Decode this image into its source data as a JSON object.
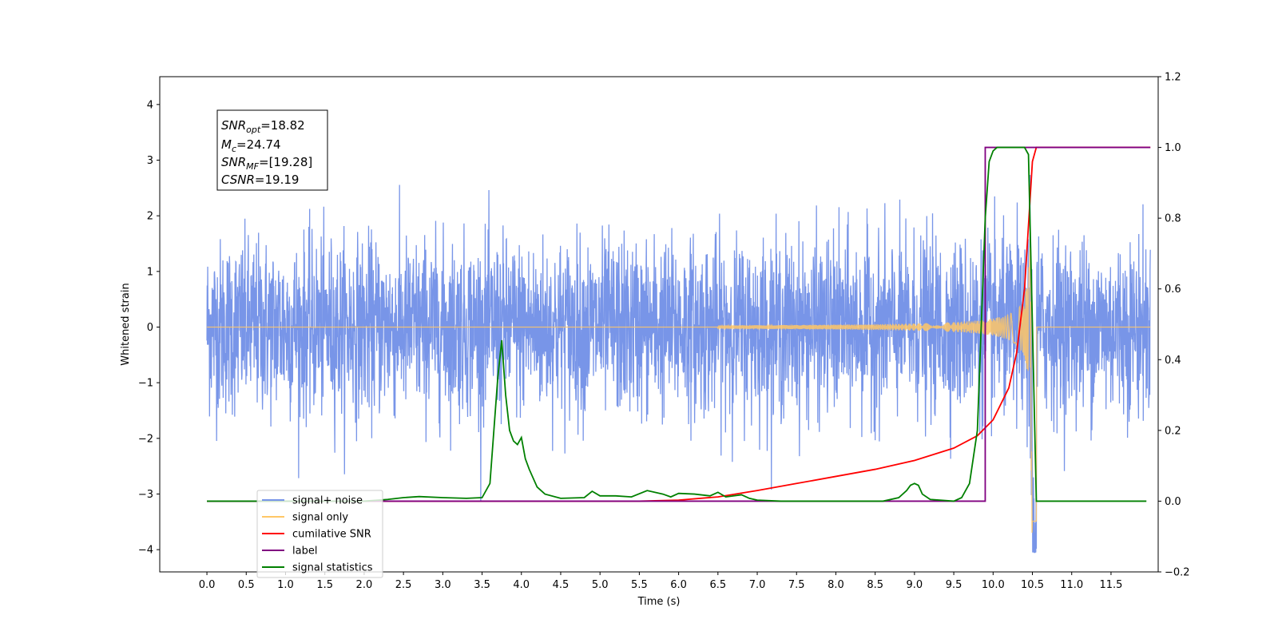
{
  "chart_data": {
    "type": "line",
    "xlabel": "Time (s)",
    "ylabel_left": "Whitened strain",
    "xlim": [
      -0.6,
      12.1
    ],
    "ylim_left": [
      -4.4,
      4.5
    ],
    "ylim_right": [
      -0.2,
      1.2
    ],
    "xticks": [
      0.0,
      0.5,
      1.0,
      1.5,
      2.0,
      2.5,
      3.0,
      3.5,
      4.0,
      4.5,
      5.0,
      5.5,
      6.0,
      6.5,
      7.0,
      7.5,
      8.0,
      8.5,
      9.0,
      9.5,
      10.0,
      10.5,
      11.0,
      11.5
    ],
    "xtick_labels": [
      "0.0",
      "0.5",
      "1.0",
      "1.5",
      "2.0",
      "2.5",
      "3.0",
      "3.5",
      "4.0",
      "4.5",
      "5.0",
      "5.5",
      "6.0",
      "6.5",
      "7.0",
      "7.5",
      "8.0",
      "8.5",
      "9.0",
      "9.5",
      "10.0",
      "10.5",
      "11.0",
      "11.5"
    ],
    "yticks_left": [
      -4,
      -3,
      -2,
      -1,
      0,
      1,
      2,
      3,
      4
    ],
    "ytick_labels_left": [
      "−4",
      "−3",
      "−2",
      "−1",
      "0",
      "1",
      "2",
      "3",
      "4"
    ],
    "yticks_right": [
      -0.2,
      0.0,
      0.2,
      0.4,
      0.6,
      0.8,
      1.0,
      1.2
    ],
    "ytick_labels_right": [
      "−0.2",
      "0.0",
      "0.2",
      "0.4",
      "0.6",
      "0.8",
      "1.0",
      "1.2"
    ],
    "stats_box": {
      "snr_opt": {
        "base": "SNR",
        "sub": "opt",
        "value": "=18.82"
      },
      "mc": {
        "base": "M",
        "sub": "c",
        "value": "=24.74"
      },
      "snr_mf": {
        "base": "SNR",
        "sub": "MF",
        "value": "=[19.28]"
      },
      "csnr": {
        "base": "CSNR",
        "sub": "",
        "value": "=19.19"
      }
    },
    "legend": {
      "location": "lower-left",
      "entries": [
        {
          "label": "signal+ noise",
          "color": "#7895e8"
        },
        {
          "label": "signal only",
          "color": "#ffc766"
        },
        {
          "label": "cumilative SNR",
          "color": "#ff0000"
        },
        {
          "label": "label",
          "color": "#800080"
        },
        {
          "label": "signal statistics",
          "color": "#008000"
        }
      ]
    },
    "series": [
      {
        "name": "signal+ noise",
        "axis": "left",
        "color": "#7895e8",
        "description_range": [
          0.0,
          12.0
        ],
        "approx_amplitude": 2.1
      },
      {
        "name": "signal only",
        "axis": "left",
        "color": "#ffc766",
        "chirp": {
          "t_start": 6.5,
          "t_merge": 10.5,
          "peak_amplitude": 3.7
        }
      },
      {
        "name": "cumilative SNR",
        "axis": "right",
        "color": "#ff0000",
        "x": [
          0.0,
          5.5,
          6.0,
          6.5,
          7.0,
          7.5,
          8.0,
          8.5,
          9.0,
          9.5,
          9.8,
          10.0,
          10.2,
          10.3,
          10.4,
          10.45,
          10.5,
          10.55,
          12.0
        ],
        "y": [
          0.0,
          0.0,
          0.003,
          0.012,
          0.03,
          0.05,
          0.07,
          0.09,
          0.115,
          0.15,
          0.185,
          0.23,
          0.32,
          0.42,
          0.6,
          0.78,
          0.96,
          1.0,
          1.0
        ]
      },
      {
        "name": "label",
        "axis": "right",
        "color": "#800080",
        "x": [
          0.0,
          9.9,
          9.9,
          10.5,
          10.5,
          12.0
        ],
        "y": [
          0.0,
          0.0,
          1.0,
          1.0,
          1.0,
          1.0
        ]
      },
      {
        "name": "signal statistics",
        "axis": "right",
        "color": "#008000",
        "x": [
          0.0,
          2.0,
          2.3,
          2.5,
          2.7,
          3.0,
          3.3,
          3.5,
          3.6,
          3.65,
          3.7,
          3.75,
          3.8,
          3.85,
          3.9,
          3.95,
          4.0,
          4.05,
          4.1,
          4.2,
          4.3,
          4.5,
          4.8,
          4.9,
          5.0,
          5.2,
          5.4,
          5.6,
          5.8,
          5.9,
          6.0,
          6.2,
          6.4,
          6.5,
          6.6,
          6.8,
          6.9,
          7.0,
          7.3,
          8.0,
          8.6,
          8.8,
          8.9,
          8.95,
          9.0,
          9.05,
          9.1,
          9.2,
          9.5,
          9.6,
          9.7,
          9.8,
          9.85,
          9.9,
          9.95,
          10.0,
          10.05,
          10.1,
          10.2,
          10.3,
          10.4,
          10.45,
          10.5,
          10.55,
          10.6,
          11.0,
          11.5,
          11.95
        ],
        "y": [
          0.0,
          0.0,
          0.005,
          0.01,
          0.013,
          0.01,
          0.008,
          0.01,
          0.05,
          0.2,
          0.35,
          0.455,
          0.3,
          0.2,
          0.17,
          0.16,
          0.18,
          0.12,
          0.09,
          0.04,
          0.02,
          0.008,
          0.01,
          0.028,
          0.015,
          0.015,
          0.012,
          0.03,
          0.02,
          0.012,
          0.022,
          0.02,
          0.015,
          0.025,
          0.012,
          0.018,
          0.008,
          0.003,
          0.0,
          0.0,
          0.0,
          0.01,
          0.03,
          0.045,
          0.05,
          0.045,
          0.02,
          0.005,
          0.0,
          0.01,
          0.05,
          0.2,
          0.5,
          0.8,
          0.96,
          0.99,
          1.0,
          1.0,
          1.0,
          1.0,
          1.0,
          0.98,
          0.5,
          0.0,
          0.0,
          0.0,
          0.0,
          0.0
        ]
      }
    ]
  }
}
